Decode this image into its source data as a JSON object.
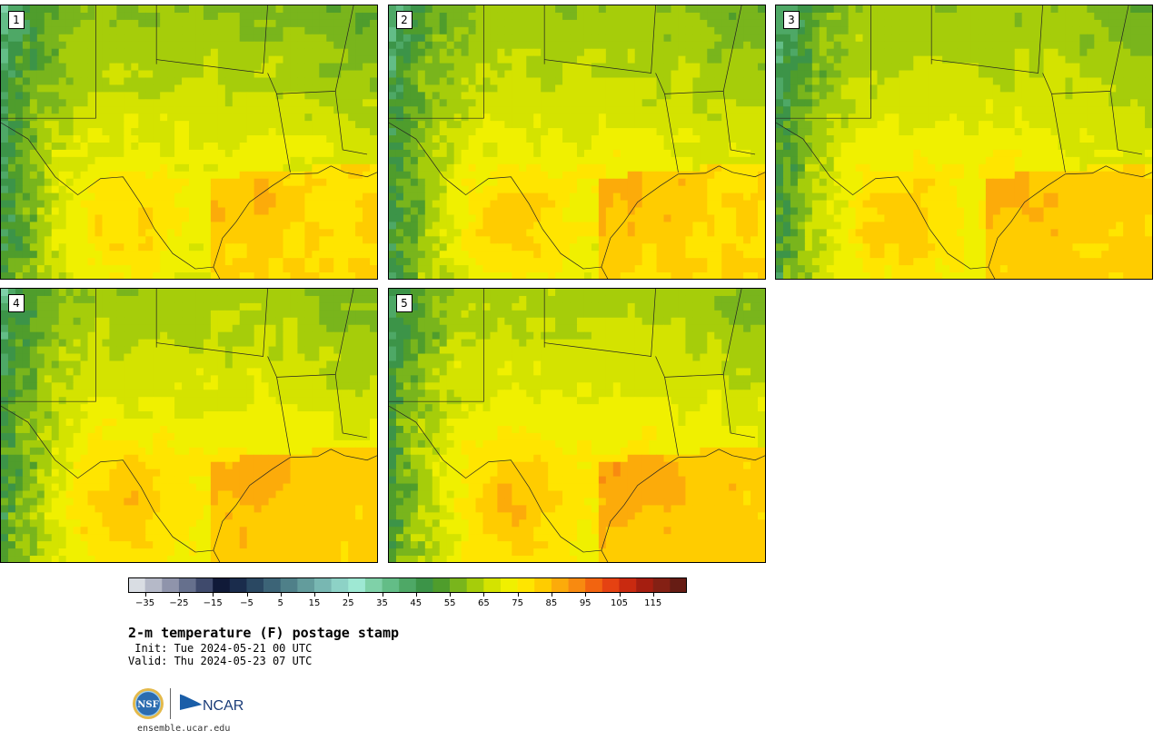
{
  "panels": [
    {
      "label": "1",
      "variant": 0
    },
    {
      "label": "2",
      "variant": 1
    },
    {
      "label": "3",
      "variant": 2
    },
    {
      "label": "4",
      "variant": 3
    },
    {
      "label": "5",
      "variant": 4
    }
  ],
  "colorbar": {
    "colors": [
      "#d9dde3",
      "#b5b9c8",
      "#8f94ab",
      "#66708d",
      "#3f4a6c",
      "#101a38",
      "#1a2c4c",
      "#2a4862",
      "#3c6477",
      "#4f8089",
      "#639c9c",
      "#78b7b2",
      "#8dd2c6",
      "#9ee8d3",
      "#7fd1a8",
      "#63bd87",
      "#4ea866",
      "#3c9448",
      "#4f9d2c",
      "#79b51c",
      "#a6cd0a",
      "#d4e300",
      "#f0f000",
      "#ffe500",
      "#ffcc00",
      "#fcab0a",
      "#f88a10",
      "#f26410",
      "#e54212",
      "#c92a10",
      "#a51e10",
      "#842014",
      "#661c14"
    ],
    "ticks": [
      "−35",
      "−25",
      "−15",
      "−5",
      "5",
      "15",
      "25",
      "35",
      "45",
      "55",
      "65",
      "75",
      "85",
      "95",
      "105",
      "115"
    ]
  },
  "title": "2-m temperature (F) postage stamp",
  "init_line": " Init: Tue 2024-05-21 00 UTC",
  "valid_line": "Valid: Thu 2024-05-23 07 UTC",
  "logos": {
    "nsf": "NSF",
    "ncar": "NCAR"
  },
  "url": "ensemble.ucar.edu"
}
